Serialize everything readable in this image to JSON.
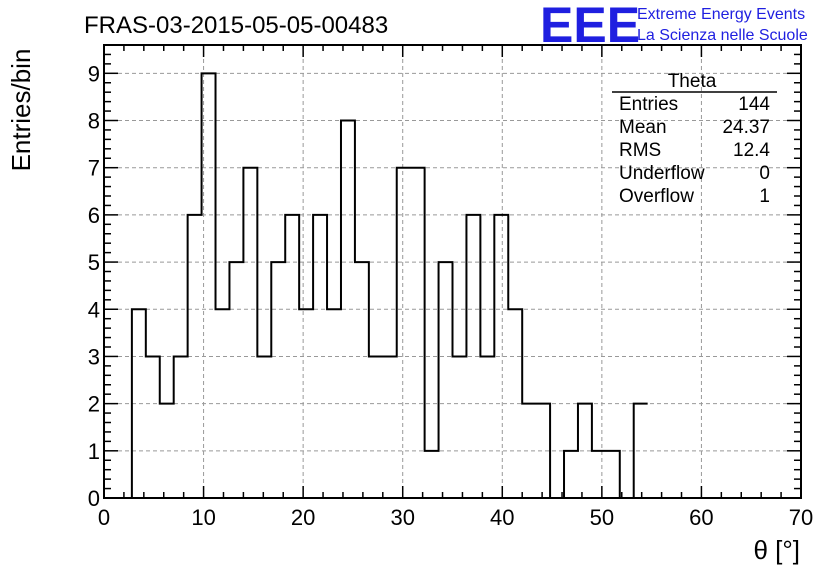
{
  "chart_data": {
    "type": "histogram",
    "title": "FRAS-03-2015-05-05-00483",
    "xlabel": "θ [°]",
    "ylabel": "Entries/bin",
    "xlim": [
      0,
      70
    ],
    "ylim": [
      0,
      9.6
    ],
    "bin_width": 1.4,
    "grid": true,
    "x_ticks": [
      "0",
      "10",
      "20",
      "30",
      "40",
      "50",
      "60",
      "70"
    ],
    "y_ticks": [
      "0",
      "1",
      "2",
      "3",
      "4",
      "5",
      "6",
      "7",
      "8",
      "9"
    ],
    "bin_edges": [
      0,
      1.4,
      2.8,
      4.2,
      5.6,
      7.0,
      8.4,
      9.8,
      11.2,
      12.6,
      14.0,
      15.4,
      16.8,
      18.2,
      19.6,
      21.0,
      22.4,
      23.8,
      25.2,
      26.6,
      28.0,
      29.4,
      30.8,
      32.2,
      33.6,
      35.0,
      36.4,
      37.8,
      39.2,
      40.6,
      42.0,
      43.4,
      44.8,
      46.2,
      47.6,
      49.0,
      50.4,
      51.8,
      53.2,
      54.6
    ],
    "counts": [
      0,
      0,
      4,
      3,
      2,
      3,
      6,
      9,
      4,
      5,
      7,
      3,
      5,
      6,
      4,
      6,
      4,
      8,
      5,
      3,
      3,
      7,
      7,
      1,
      5,
      3,
      6,
      3,
      6,
      4,
      2,
      2,
      0,
      1,
      2,
      1,
      1,
      0,
      2
    ],
    "stats_box": {
      "title": "Theta",
      "rows": [
        {
          "label": "Entries",
          "value": "144"
        },
        {
          "label": "Mean",
          "value": "24.37"
        },
        {
          "label": "RMS",
          "value": "12.4"
        },
        {
          "label": "Underflow",
          "value": "0"
        },
        {
          "label": "Overflow",
          "value": "1"
        }
      ]
    }
  },
  "logo": {
    "mark": "EEE",
    "line1": "Extreme Energy Events",
    "line2": "La Scienza nelle Scuole"
  },
  "colors": {
    "line": "#000000",
    "grid": "#999999",
    "logo": "#1f1fe0"
  }
}
